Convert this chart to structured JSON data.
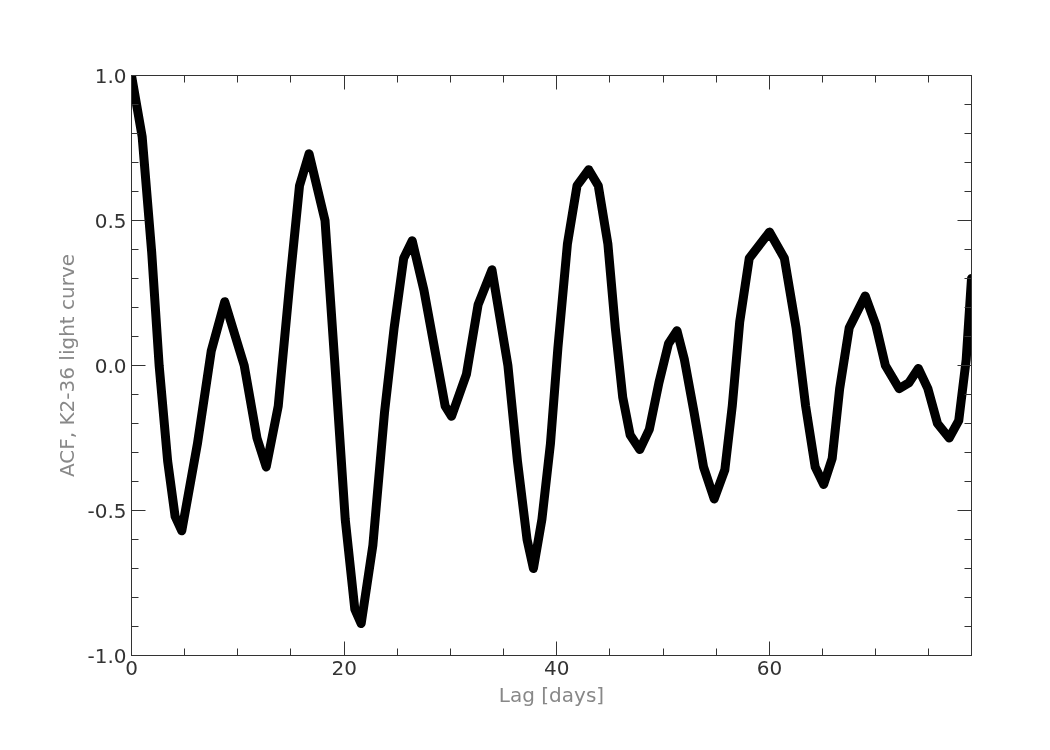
{
  "chart_data": {
    "type": "line",
    "xlabel": "Lag [days]",
    "ylabel": "ACF, K2-36 light curve",
    "xlim": [
      0,
      79
    ],
    "ylim": [
      -1.0,
      1.0
    ],
    "xticks": [
      0,
      20,
      40,
      60
    ],
    "yticks": [
      {
        "value": -1.0,
        "label": "-1.0"
      },
      {
        "value": -0.5,
        "label": "-0.5"
      },
      {
        "value": 0.0,
        "label": "0.0"
      },
      {
        "value": 0.5,
        "label": "0.5"
      },
      {
        "value": 1.0,
        "label": "1.0"
      }
    ],
    "grid": false,
    "marker": "none",
    "line_style": "solid",
    "series": [
      {
        "color": "#000000",
        "x": [
          0,
          1.0,
          1.9,
          2.6,
          3.4,
          4.1,
          4.73,
          6.2,
          7.5,
          8.77,
          10.6,
          11.8,
          12.67,
          13.8,
          14.9,
          15.8,
          16.7,
          18.2,
          19.1,
          20.1,
          21.0,
          21.6,
          22.7,
          23.8,
          24.7,
          25.6,
          26.4,
          27.5,
          28.8,
          29.5,
          30.1,
          31.5,
          32.6,
          33.9,
          35.4,
          36.3,
          37.2,
          37.8,
          38.6,
          39.4,
          40.1,
          41.0,
          41.9,
          43.0,
          43.9,
          44.8,
          45.5,
          46.2,
          46.9,
          47.8,
          48.7,
          49.6,
          50.5,
          51.3,
          52.0,
          52.9,
          53.8,
          54.8,
          55.8,
          56.5,
          57.2,
          58.1,
          60.0,
          61.4,
          62.5,
          63.4,
          64.3,
          65.1,
          65.9,
          66.6,
          67.5,
          69.0,
          70.0,
          70.9,
          72.2,
          73.1,
          74.0,
          74.9,
          75.8,
          76.9,
          77.8,
          78.5,
          79.0
        ],
        "values": [
          1.0,
          0.79,
          0.39,
          0.0,
          -0.33,
          -0.52,
          -0.57,
          -0.27,
          0.05,
          0.22,
          0.0,
          -0.25,
          -0.35,
          -0.14,
          0.29,
          0.62,
          0.73,
          0.5,
          0.02,
          -0.53,
          -0.84,
          -0.89,
          -0.62,
          -0.16,
          0.13,
          0.37,
          0.43,
          0.26,
          0.0,
          -0.14,
          -0.175,
          -0.03,
          0.21,
          0.33,
          0.0,
          -0.33,
          -0.6,
          -0.7,
          -0.53,
          -0.27,
          0.06,
          0.42,
          0.62,
          0.675,
          0.62,
          0.42,
          0.13,
          -0.11,
          -0.24,
          -0.29,
          -0.22,
          -0.06,
          0.075,
          0.12,
          0.02,
          -0.16,
          -0.35,
          -0.46,
          -0.36,
          -0.14,
          0.15,
          0.37,
          0.46,
          0.37,
          0.13,
          -0.14,
          -0.35,
          -0.41,
          -0.32,
          -0.08,
          0.13,
          0.24,
          0.14,
          0.0,
          -0.08,
          -0.06,
          -0.01,
          -0.08,
          -0.2,
          -0.25,
          -0.19,
          0.02,
          0.3
        ]
      }
    ]
  }
}
